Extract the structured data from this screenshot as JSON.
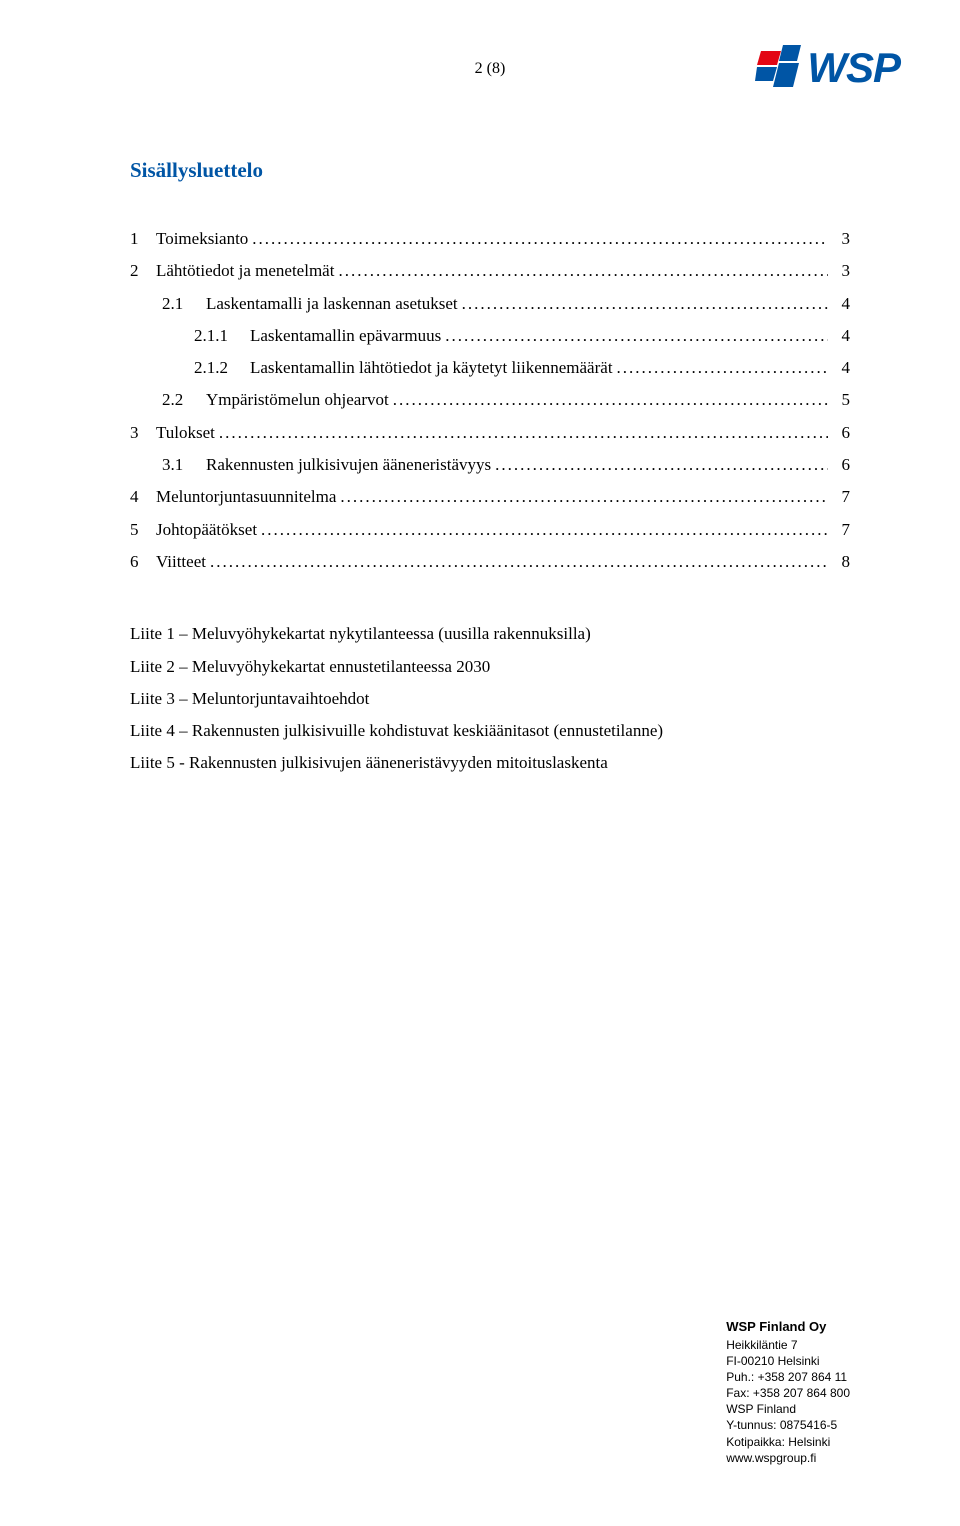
{
  "page_number": "2 (8)",
  "logo": {
    "text": "WSP",
    "red": "#e30613",
    "blue": "#0055a5"
  },
  "heading": "Sisällysluettelo",
  "toc": [
    {
      "level": 1,
      "num": "1",
      "label": "Toimeksianto",
      "page": "3"
    },
    {
      "level": 1,
      "num": "2",
      "label": "Lähtötiedot ja menetelmät",
      "page": "3"
    },
    {
      "level": 2,
      "num": "2.1",
      "label": "Laskentamalli ja laskennan asetukset",
      "page": "4"
    },
    {
      "level": 3,
      "num": "2.1.1",
      "label": "Laskentamallin epävarmuus",
      "page": "4"
    },
    {
      "level": 3,
      "num": "2.1.2",
      "label": "Laskentamallin lähtötiedot ja käytetyt liikennemäärät",
      "page": "4"
    },
    {
      "level": 2,
      "num": "2.2",
      "label": "Ympäristömelun ohjearvot",
      "page": "5"
    },
    {
      "level": 1,
      "num": "3",
      "label": "Tulokset",
      "page": "6"
    },
    {
      "level": 2,
      "num": "3.1",
      "label": "Rakennusten julkisivujen ääneneristävyys",
      "page": "6"
    },
    {
      "level": 1,
      "num": "4",
      "label": "Meluntorjuntasuunnitelma",
      "page": "7"
    },
    {
      "level": 1,
      "num": "5",
      "label": "Johtopäätökset",
      "page": "7"
    },
    {
      "level": 1,
      "num": "6",
      "label": "Viitteet",
      "page": "8"
    }
  ],
  "appendices": [
    "Liite 1 – Meluvyöhykekartat nykytilanteessa (uusilla rakennuksilla)",
    "Liite 2 – Meluvyöhykekartat ennustetilanteessa 2030",
    "Liite 3 – Meluntorjuntavaihtoehdot",
    "Liite 4 – Rakennusten julkisivuille kohdistuvat keskiäänitasot (ennustetilanne)",
    "Liite 5 - Rakennusten julkisivujen ääneneristävyyden mitoituslaskenta"
  ],
  "footer": {
    "company": "WSP Finland Oy",
    "lines": [
      "Heikkiläntie 7",
      "FI-00210 Helsinki",
      "Puh.: +358 207 864 11",
      "Fax: +358 207 864 800",
      "WSP Finland",
      "Y-tunnus: 0875416-5",
      "Kotipaikka: Helsinki",
      "www.wspgroup.fi"
    ]
  }
}
